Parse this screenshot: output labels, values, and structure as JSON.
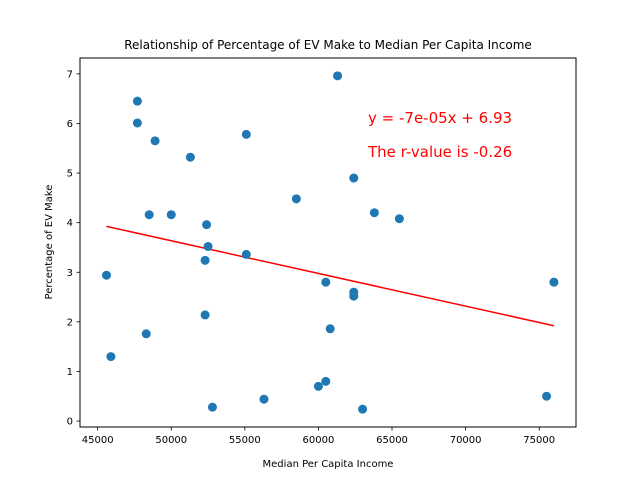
{
  "chart_data": {
    "type": "scatter",
    "title": "Relationship of Percentage of EV Make to Median Per Capita Income",
    "xlabel": "Median Per Capita Income",
    "ylabel": "Percentage of EV Make",
    "xlim": [
      43800,
      77500
    ],
    "ylim": [
      -0.12,
      7.32
    ],
    "xticks": [
      45000,
      50000,
      55000,
      60000,
      65000,
      70000,
      75000
    ],
    "yticks": [
      0,
      1,
      2,
      3,
      4,
      5,
      6,
      7
    ],
    "grid": false,
    "colors": {
      "points": "#1f77b4",
      "regression": "#ff0000",
      "annotation": "#ff0000"
    },
    "points": [
      {
        "x": 45600,
        "y": 2.94
      },
      {
        "x": 45900,
        "y": 1.3
      },
      {
        "x": 47700,
        "y": 6.45
      },
      {
        "x": 47700,
        "y": 6.01
      },
      {
        "x": 48300,
        "y": 1.76
      },
      {
        "x": 48500,
        "y": 4.16
      },
      {
        "x": 48900,
        "y": 5.65
      },
      {
        "x": 50000,
        "y": 4.16
      },
      {
        "x": 51300,
        "y": 5.32
      },
      {
        "x": 52300,
        "y": 3.24
      },
      {
        "x": 52300,
        "y": 2.14
      },
      {
        "x": 52400,
        "y": 3.96
      },
      {
        "x": 52500,
        "y": 3.52
      },
      {
        "x": 52800,
        "y": 0.28
      },
      {
        "x": 55100,
        "y": 5.78
      },
      {
        "x": 55100,
        "y": 3.36
      },
      {
        "x": 56300,
        "y": 0.44
      },
      {
        "x": 58500,
        "y": 4.48
      },
      {
        "x": 60000,
        "y": 0.7
      },
      {
        "x": 60500,
        "y": 0.8
      },
      {
        "x": 60500,
        "y": 2.8
      },
      {
        "x": 60800,
        "y": 1.86
      },
      {
        "x": 61300,
        "y": 6.96
      },
      {
        "x": 62400,
        "y": 4.9
      },
      {
        "x": 62400,
        "y": 2.6
      },
      {
        "x": 62400,
        "y": 2.52
      },
      {
        "x": 63000,
        "y": 0.24
      },
      {
        "x": 63800,
        "y": 4.2
      },
      {
        "x": 65500,
        "y": 4.08
      },
      {
        "x": 75500,
        "y": 0.5
      },
      {
        "x": 76000,
        "y": 2.8
      }
    ],
    "regression": {
      "slope": -6.59e-05,
      "intercept": 6.93,
      "x_range": [
        45600,
        76000
      ]
    },
    "annotations": [
      "y = -7e-05x + 6.93",
      "The r-value is -0.26"
    ]
  }
}
